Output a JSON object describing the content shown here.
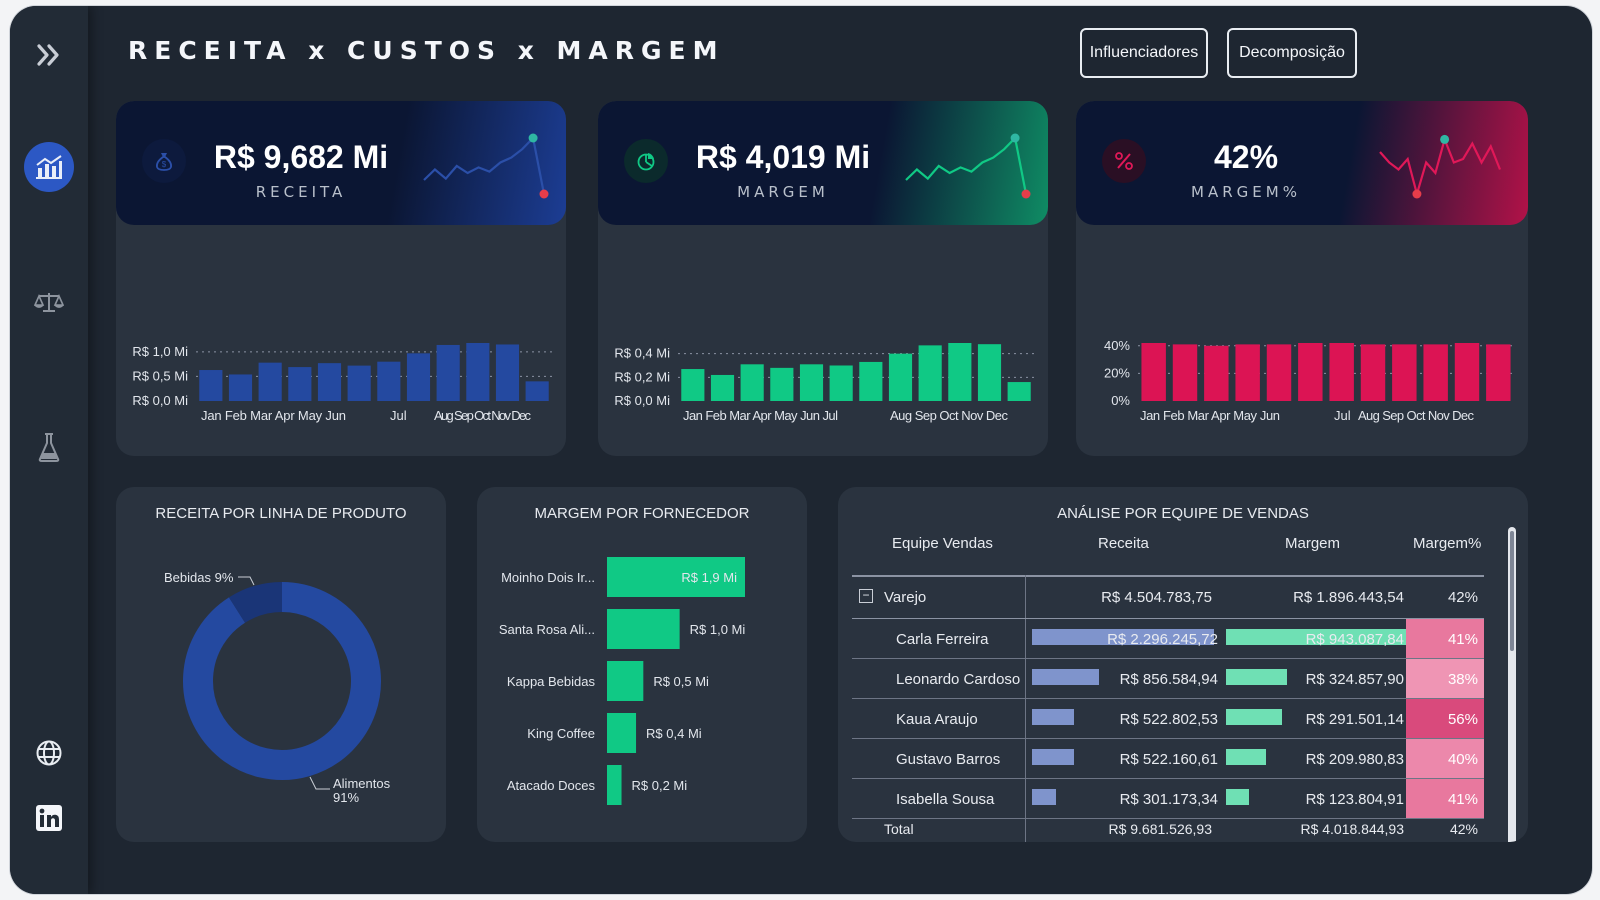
{
  "title": "RECEITA x CUSTOS x MARGEM",
  "buttons": {
    "influencers": "Influenciadores",
    "decomposition": "Decomposição"
  },
  "sidebar": {
    "icons": [
      "expand-chevrons-icon",
      "chart-report-icon",
      "scale-icon",
      "flask-icon",
      "globe-icon",
      "linkedin-icon"
    ],
    "active": "chart-report-icon"
  },
  "kpis": [
    {
      "value": "R$ 9,682 Mi",
      "label": "RECEITA",
      "icon": "money-bag-icon",
      "color": "#2b4fa8",
      "trend": [
        0.3,
        0.45,
        0.32,
        0.5,
        0.4,
        0.48,
        0.42,
        0.55,
        0.62,
        0.74,
        0.9,
        0.1
      ]
    },
    {
      "value": "R$ 4,019 Mi",
      "label": "MARGEM",
      "icon": "pie-chart-icon",
      "color": "#10c985",
      "trend": [
        0.3,
        0.45,
        0.32,
        0.5,
        0.4,
        0.48,
        0.42,
        0.55,
        0.62,
        0.74,
        0.9,
        0.1
      ]
    },
    {
      "value": "42%",
      "label": "MARGEM%",
      "icon": "percent-icon",
      "color": "#e01858",
      "trend": [
        0.7,
        0.55,
        0.45,
        0.6,
        0.1,
        0.55,
        0.4,
        0.88,
        0.55,
        0.6,
        0.82,
        0.55,
        0.78,
        0.45
      ]
    }
  ],
  "chart_data": [
    {
      "type": "bar",
      "title": "",
      "categories": [
        "Jan",
        "Feb",
        "Mar",
        "Apr",
        "May",
        "Jun",
        "Jul",
        "Aug",
        "Sep",
        "Oct",
        "Nov",
        "Dec"
      ],
      "tick_labels": [
        "Jan Feb Mar Apr May Jun",
        "Jul",
        "Aug Sep Oct Nov Dec"
      ],
      "values": [
        0.63,
        0.54,
        0.78,
        0.69,
        0.77,
        0.72,
        0.8,
        0.97,
        1.14,
        1.18,
        1.15,
        0.4
      ],
      "yticks": [
        "R$ 0,0 Mi",
        "R$ 0,5 Mi",
        "R$ 1,0 Mi"
      ],
      "ytick_values": [
        0,
        0.5,
        1.0
      ],
      "ylim": [
        0,
        1.18
      ],
      "color": "#2449a0",
      "grid": true
    },
    {
      "type": "bar",
      "title": "",
      "categories": [
        "Jan",
        "Feb",
        "Mar",
        "Apr",
        "May",
        "Jun",
        "Jul",
        "Aug",
        "Sep",
        "Oct",
        "Nov",
        "Dec"
      ],
      "tick_labels": [
        "Jan Feb Mar Apr May Jun Jul",
        "Aug Sep Oct Nov Dec"
      ],
      "values": [
        0.27,
        0.22,
        0.31,
        0.28,
        0.31,
        0.3,
        0.33,
        0.4,
        0.47,
        0.49,
        0.48,
        0.16
      ],
      "yticks": [
        "R$ 0,0 Mi",
        "R$ 0,2 Mi",
        "R$ 0,4 Mi"
      ],
      "ytick_values": [
        0,
        0.2,
        0.4
      ],
      "ylim": [
        0,
        0.49
      ],
      "color": "#10c985",
      "grid": true
    },
    {
      "type": "bar",
      "title": "",
      "categories": [
        "Jan",
        "Feb",
        "Mar",
        "Apr",
        "May",
        "Jun",
        "Jul",
        "Aug",
        "Sep",
        "Oct",
        "Nov",
        "Dec"
      ],
      "tick_labels": [
        "Jan Feb Mar Apr May Jun",
        "Jul",
        "Aug Sep Oct Nov Dec"
      ],
      "values": [
        42,
        41,
        40,
        41,
        41,
        42,
        42,
        41,
        41,
        41,
        42,
        41
      ],
      "yticks": [
        "0%",
        "20%",
        "40%"
      ],
      "ytick_values": [
        0,
        20,
        40
      ],
      "ylim": [
        0,
        42
      ],
      "color": "#dc1454",
      "grid": true
    },
    {
      "type": "pie",
      "title": "RECEITA POR LINHA DE PRODUTO",
      "donut": true,
      "categories": [
        "Alimentos",
        "Bebidas"
      ],
      "values": [
        91,
        9
      ],
      "labels": [
        "Alimentos",
        "91%",
        "Bebidas 9%"
      ],
      "colors": [
        "#2449a0",
        "#1a3577"
      ]
    },
    {
      "type": "bar",
      "orientation": "horizontal",
      "title": "MARGEM POR FORNECEDOR",
      "categories": [
        "Moinho Dois Ir...",
        "Santa Rosa Ali...",
        "Kappa Bebidas",
        "King Coffee",
        "Atacado Doces"
      ],
      "values": [
        1.9,
        1.0,
        0.5,
        0.4,
        0.2
      ],
      "data_labels": [
        "R$ 1,9 Mi",
        "R$ 1,0 Mi",
        "R$ 0,5 Mi",
        "R$ 0,4 Mi",
        "R$ 0,2 Mi"
      ],
      "color": "#10c985"
    }
  ],
  "table": {
    "title": "ANÁLISE POR EQUIPE DE VENDAS",
    "columns": [
      "Equipe Vendas",
      "Receita",
      "Margem",
      "Margem%"
    ],
    "group": {
      "name": "Varejo",
      "receita": "R$ 4.504.783,75",
      "margem": "R$ 1.896.443,54",
      "pct": "42%",
      "expand_symbol": "−"
    },
    "rows": [
      {
        "name": "Carla Ferreira",
        "receita": "R$ 2.296.245,72",
        "margem": "R$ 943.087,84",
        "pct": "41%",
        "rec_frac": 1.0,
        "mar_frac": 1.0,
        "pct_color": "#e8789e"
      },
      {
        "name": "Leonardo Cardoso",
        "receita": "R$ 856.584,94",
        "margem": "R$ 324.857,90",
        "pct": "38%",
        "rec_frac": 0.37,
        "mar_frac": 0.34,
        "pct_color": "#ef95b4"
      },
      {
        "name": "Kaua Araujo",
        "receita": "R$ 522.802,53",
        "margem": "R$ 291.501,14",
        "pct": "56%",
        "rec_frac": 0.23,
        "mar_frac": 0.31,
        "pct_color": "#d94a7c"
      },
      {
        "name": "Gustavo Barros",
        "receita": "R$ 522.160,61",
        "margem": "R$ 209.980,83",
        "pct": "40%",
        "rec_frac": 0.23,
        "mar_frac": 0.22,
        "pct_color": "#ec88ab"
      },
      {
        "name": "Isabella Sousa",
        "receita": "R$ 301.173,34",
        "margem": "R$ 123.804,91",
        "pct": "41%",
        "rec_frac": 0.13,
        "mar_frac": 0.13,
        "pct_color": "#e8789e"
      }
    ],
    "total": {
      "label": "Total",
      "receita": "R$ 9.681.526,93",
      "margem": "R$ 4.018.844,93",
      "pct": "42%"
    }
  }
}
